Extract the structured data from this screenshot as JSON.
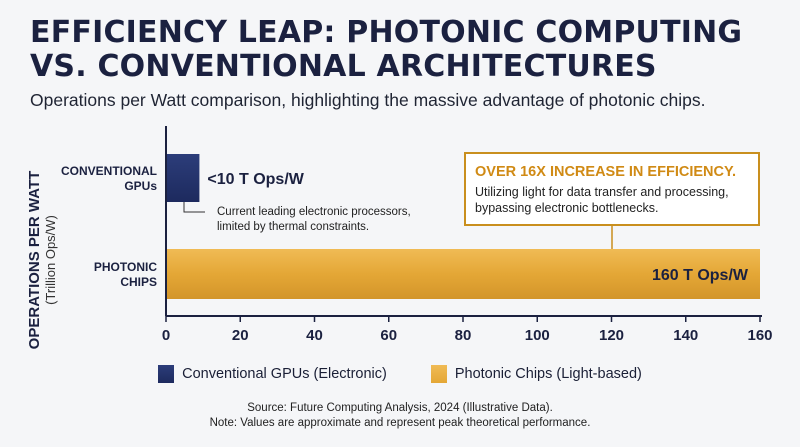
{
  "header": {
    "title_line1": "EFFICIENCY LEAP: PHOTONIC COMPUTING",
    "title_line2": "VS. CONVENTIONAL ARCHITECTURES",
    "subtitle": "Operations per Watt comparison, highlighting the massive advantage of photonic chips."
  },
  "colors": {
    "conventional": "#1d2a5e",
    "photonic": "#e4a736",
    "axis": "#1b2140",
    "callout_border": "#c98f1e",
    "callout_title": "#d08a14"
  },
  "chart_data": {
    "type": "bar",
    "orientation": "horizontal",
    "categories": [
      "CONVENTIONAL GPUs",
      "PHOTONIC CHIPS"
    ],
    "category_lines": [
      [
        "CONVENTIONAL",
        "GPUs"
      ],
      [
        "PHOTONIC",
        "CHIPS"
      ]
    ],
    "values": [
      9,
      160
    ],
    "data_labels": [
      "<10 T Ops/W",
      "160 T Ops/W"
    ],
    "ylabel": "OPERATIONS PER WATT",
    "ylabel_unit": "(Trillion Ops/W)",
    "xlim": [
      0,
      160
    ],
    "xticks": [
      0,
      20,
      40,
      60,
      80,
      100,
      120,
      140,
      160
    ],
    "grid": false,
    "legend": {
      "placement": "bottom",
      "entries": [
        "Conventional GPUs (Electronic)",
        "Photonic Chips (Light-based)"
      ]
    },
    "annotations": {
      "conventional_note": [
        "Current leading electronic processors,",
        "limited by thermal constraints."
      ],
      "callout_title": "OVER 16X INCREASE IN EFFICIENCY.",
      "callout_body": [
        "Utilizing light for data transfer and processing,",
        "bypassing electronic bottlenecks."
      ]
    }
  },
  "footer": {
    "source": "Source: Future Computing Analysis, 2024 (Illustrative Data).",
    "note": "Note: Values are approximate and represent peak theoretical performance."
  }
}
